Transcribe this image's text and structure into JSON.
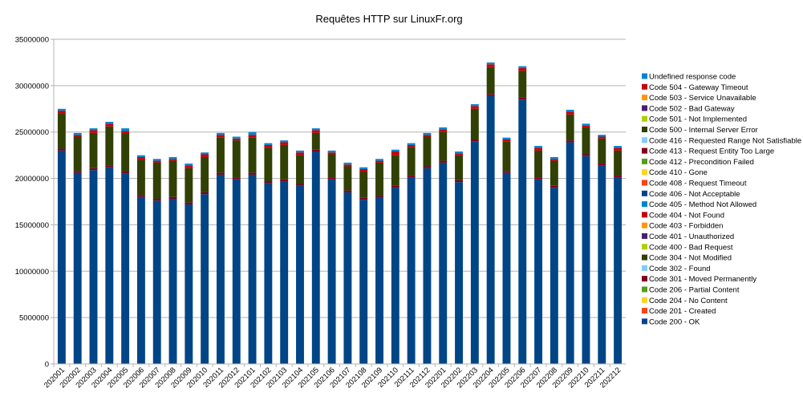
{
  "chart_data": {
    "type": "bar",
    "stacked": true,
    "title": "Requêtes HTTP sur LinuxFr.org",
    "xlabel": "",
    "ylabel": "",
    "ylim": [
      0,
      35000000
    ],
    "y_ticks": [
      "0",
      "5000000",
      "10000000",
      "15000000",
      "20000000",
      "25000000",
      "30000000",
      "35000000"
    ],
    "grid": true,
    "legend_position": "right",
    "categories": [
      "202001",
      "202002",
      "202003",
      "202004",
      "202005",
      "202006",
      "202007",
      "202008",
      "202009",
      "202010",
      "202011",
      "202012",
      "202101",
      "202102",
      "202103",
      "202104",
      "202105",
      "202106",
      "202107",
      "202108",
      "202109",
      "202110",
      "202111",
      "202112",
      "202201",
      "202202",
      "202203",
      "202204",
      "202205",
      "202206",
      "202207",
      "202208",
      "202209",
      "202210",
      "202211",
      "202212"
    ],
    "series": [
      {
        "name": "Code 200 - OK",
        "color": "#004586",
        "values": [
          23000000,
          20600000,
          20900000,
          21200000,
          20500000,
          18000000,
          17600000,
          17800000,
          17200000,
          18300000,
          20400000,
          19900000,
          20400000,
          19500000,
          19700000,
          19200000,
          22900000,
          19900000,
          18500000,
          17700000,
          17900000,
          19000000,
          20100000,
          21100000,
          21700000,
          19600000,
          24000000,
          28900000,
          20600000,
          28500000,
          19900000,
          19000000,
          23900000,
          22400000,
          21400000,
          20100000
        ]
      },
      {
        "name": "Code 201 - Created",
        "color": "#ff420e",
        "values": [
          0,
          0,
          0,
          0,
          0,
          0,
          0,
          0,
          0,
          0,
          0,
          0,
          0,
          0,
          0,
          0,
          0,
          0,
          0,
          0,
          0,
          0,
          0,
          0,
          0,
          0,
          0,
          0,
          0,
          0,
          0,
          0,
          0,
          0,
          0,
          0
        ]
      },
      {
        "name": "Code 204 - No Content",
        "color": "#ffd320",
        "values": [
          0,
          0,
          0,
          0,
          0,
          0,
          0,
          0,
          0,
          0,
          0,
          0,
          0,
          0,
          0,
          0,
          0,
          0,
          0,
          0,
          0,
          0,
          0,
          0,
          0,
          0,
          0,
          0,
          0,
          0,
          0,
          0,
          0,
          0,
          0,
          0
        ]
      },
      {
        "name": "Code 206 - Partial Content",
        "color": "#579d1c",
        "values": [
          0,
          0,
          0,
          0,
          0,
          0,
          0,
          0,
          0,
          0,
          0,
          0,
          0,
          0,
          0,
          0,
          0,
          0,
          0,
          0,
          0,
          0,
          0,
          0,
          0,
          0,
          0,
          0,
          0,
          0,
          0,
          0,
          0,
          0,
          0,
          0
        ]
      },
      {
        "name": "Code 301 - Moved Permanently",
        "color": "#7e0021",
        "values": [
          200000,
          200000,
          200000,
          200000,
          200000,
          200000,
          200000,
          200000,
          200000,
          200000,
          200000,
          200000,
          200000,
          200000,
          200000,
          200000,
          200000,
          200000,
          200000,
          200000,
          200000,
          200000,
          200000,
          200000,
          200000,
          200000,
          200000,
          200000,
          200000,
          200000,
          200000,
          200000,
          200000,
          200000,
          200000,
          200000
        ]
      },
      {
        "name": "Code 302 - Found",
        "color": "#83caff",
        "values": [
          0,
          0,
          0,
          0,
          0,
          0,
          0,
          0,
          0,
          0,
          0,
          0,
          0,
          0,
          0,
          0,
          0,
          0,
          0,
          0,
          0,
          0,
          0,
          0,
          0,
          0,
          0,
          0,
          0,
          0,
          0,
          0,
          0,
          0,
          0,
          0
        ]
      },
      {
        "name": "Code 304 - Not Modified",
        "color": "#314004",
        "values": [
          3800000,
          3700000,
          3800000,
          4200000,
          4100000,
          3800000,
          3900000,
          3900000,
          3700000,
          3800000,
          3800000,
          4000000,
          3800000,
          3600000,
          3700000,
          3100000,
          1800000,
          2500000,
          2600000,
          2800000,
          3600000,
          3300000,
          3100000,
          3200000,
          3100000,
          2700000,
          3300000,
          2900000,
          3200000,
          2900000,
          2900000,
          2700000,
          2800000,
          2900000,
          2700000,
          2700000
        ]
      },
      {
        "name": "Code 400 - Bad Request",
        "color": "#aecf00",
        "values": [
          0,
          0,
          0,
          0,
          0,
          0,
          0,
          0,
          0,
          0,
          0,
          0,
          0,
          0,
          0,
          0,
          0,
          0,
          0,
          0,
          0,
          0,
          0,
          0,
          0,
          0,
          0,
          0,
          0,
          0,
          0,
          0,
          0,
          0,
          0,
          0
        ]
      },
      {
        "name": "Code 401 - Unauthorized",
        "color": "#4b1f6f",
        "values": [
          0,
          0,
          0,
          0,
          0,
          0,
          0,
          0,
          0,
          0,
          0,
          0,
          0,
          0,
          0,
          0,
          0,
          0,
          0,
          0,
          0,
          0,
          0,
          0,
          0,
          0,
          0,
          0,
          0,
          0,
          0,
          0,
          0,
          0,
          0,
          0
        ]
      },
      {
        "name": "Code 403 - Forbidden",
        "color": "#ff950e",
        "values": [
          0,
          0,
          0,
          0,
          0,
          0,
          0,
          0,
          0,
          0,
          0,
          0,
          0,
          0,
          0,
          0,
          0,
          0,
          0,
          0,
          0,
          0,
          0,
          0,
          0,
          0,
          0,
          0,
          0,
          0,
          0,
          0,
          0,
          0,
          0,
          0
        ]
      },
      {
        "name": "Code 404 - Not Found",
        "color": "#c5000b",
        "values": [
          300000,
          200000,
          300000,
          300000,
          300000,
          300000,
          200000,
          200000,
          300000,
          300000,
          300000,
          200000,
          300000,
          300000,
          300000,
          300000,
          300000,
          200000,
          200000,
          300000,
          200000,
          400000,
          200000,
          200000,
          300000,
          200000,
          300000,
          300000,
          200000,
          300000,
          300000,
          200000,
          300000,
          200000,
          200000,
          300000
        ]
      },
      {
        "name": "Code 405 - Method Not Allowed",
        "color": "#0084d1",
        "values": [
          0,
          0,
          0,
          0,
          0,
          0,
          0,
          0,
          0,
          0,
          0,
          0,
          0,
          0,
          0,
          0,
          0,
          0,
          0,
          0,
          0,
          0,
          0,
          0,
          0,
          0,
          0,
          0,
          0,
          0,
          0,
          0,
          0,
          0,
          0,
          0
        ]
      },
      {
        "name": "Code 406 - Not Acceptable",
        "color": "#004586",
        "values": [
          0,
          0,
          0,
          0,
          0,
          0,
          0,
          0,
          0,
          0,
          0,
          0,
          0,
          0,
          0,
          0,
          0,
          0,
          0,
          0,
          0,
          0,
          0,
          0,
          0,
          0,
          0,
          0,
          0,
          0,
          0,
          0,
          0,
          0,
          0,
          0
        ]
      },
      {
        "name": "Code 408 - Request Timeout",
        "color": "#ff420e",
        "values": [
          0,
          0,
          0,
          0,
          0,
          0,
          0,
          0,
          0,
          0,
          0,
          0,
          0,
          0,
          0,
          0,
          0,
          0,
          0,
          0,
          0,
          0,
          0,
          0,
          0,
          0,
          0,
          0,
          0,
          0,
          0,
          0,
          0,
          0,
          0,
          0
        ]
      },
      {
        "name": "Code 410 - Gone",
        "color": "#ffd320",
        "values": [
          0,
          0,
          0,
          0,
          0,
          0,
          0,
          0,
          0,
          0,
          0,
          0,
          0,
          0,
          0,
          0,
          0,
          0,
          0,
          0,
          0,
          0,
          0,
          0,
          0,
          0,
          0,
          0,
          0,
          0,
          0,
          0,
          0,
          0,
          0,
          0
        ]
      },
      {
        "name": "Code 412 - Precondition Failed",
        "color": "#579d1c",
        "values": [
          0,
          0,
          0,
          0,
          0,
          0,
          0,
          0,
          0,
          0,
          0,
          0,
          0,
          0,
          0,
          0,
          0,
          0,
          0,
          0,
          0,
          0,
          0,
          0,
          0,
          0,
          0,
          0,
          0,
          0,
          0,
          0,
          0,
          0,
          0,
          0
        ]
      },
      {
        "name": "Code 413 - Request Entity Too Large",
        "color": "#7e0021",
        "values": [
          0,
          0,
          0,
          0,
          0,
          0,
          0,
          0,
          0,
          0,
          0,
          0,
          0,
          0,
          0,
          0,
          0,
          0,
          0,
          0,
          0,
          0,
          0,
          0,
          0,
          0,
          0,
          0,
          0,
          0,
          0,
          0,
          0,
          0,
          0,
          0
        ]
      },
      {
        "name": "Code 416 - Requested Range Not Satisfiable",
        "color": "#83caff",
        "values": [
          0,
          0,
          0,
          0,
          0,
          0,
          0,
          0,
          0,
          0,
          0,
          0,
          0,
          0,
          0,
          0,
          0,
          0,
          0,
          0,
          0,
          0,
          0,
          0,
          0,
          0,
          0,
          0,
          0,
          0,
          0,
          0,
          0,
          0,
          0,
          0
        ]
      },
      {
        "name": "Code 500 - Internal Server Error",
        "color": "#314004",
        "values": [
          0,
          0,
          0,
          0,
          0,
          0,
          0,
          0,
          0,
          0,
          0,
          0,
          0,
          0,
          0,
          0,
          0,
          0,
          0,
          0,
          0,
          0,
          0,
          0,
          0,
          0,
          0,
          0,
          0,
          0,
          0,
          0,
          0,
          0,
          0,
          0
        ]
      },
      {
        "name": "Code 501 - Not Implemented",
        "color": "#aecf00",
        "values": [
          0,
          0,
          0,
          0,
          0,
          0,
          0,
          0,
          0,
          0,
          0,
          0,
          0,
          0,
          0,
          0,
          0,
          0,
          0,
          0,
          0,
          0,
          0,
          0,
          0,
          0,
          0,
          0,
          0,
          0,
          0,
          0,
          0,
          0,
          0,
          0
        ]
      },
      {
        "name": "Code 502 - Bad Gateway",
        "color": "#4b1f6f",
        "values": [
          0,
          0,
          0,
          0,
          0,
          0,
          0,
          0,
          0,
          0,
          0,
          0,
          0,
          0,
          0,
          0,
          0,
          0,
          0,
          0,
          0,
          0,
          0,
          0,
          0,
          0,
          0,
          0,
          0,
          0,
          0,
          0,
          0,
          0,
          0,
          0
        ]
      },
      {
        "name": "Code 503 - Service Unavailable",
        "color": "#ff950e",
        "values": [
          0,
          0,
          0,
          0,
          0,
          0,
          0,
          0,
          0,
          0,
          0,
          0,
          0,
          0,
          0,
          0,
          0,
          0,
          0,
          0,
          0,
          0,
          0,
          0,
          0,
          0,
          0,
          0,
          0,
          0,
          0,
          0,
          0,
          0,
          0,
          0
        ]
      },
      {
        "name": "Code 504 - Gateway Timeout",
        "color": "#c5000b",
        "values": [
          0,
          0,
          0,
          0,
          0,
          0,
          0,
          0,
          0,
          0,
          0,
          0,
          0,
          0,
          0,
          0,
          0,
          0,
          0,
          0,
          0,
          0,
          0,
          0,
          0,
          0,
          0,
          0,
          0,
          0,
          0,
          0,
          0,
          0,
          0,
          0
        ]
      },
      {
        "name": "Undefined response code",
        "color": "#0084d1",
        "values": [
          200000,
          200000,
          200000,
          200000,
          300000,
          200000,
          200000,
          200000,
          200000,
          200000,
          200000,
          200000,
          300000,
          200000,
          200000,
          200000,
          200000,
          200000,
          200000,
          200000,
          200000,
          200000,
          200000,
          200000,
          200000,
          200000,
          200000,
          200000,
          200000,
          200000,
          200000,
          200000,
          200000,
          200000,
          200000,
          200000
        ]
      }
    ]
  }
}
